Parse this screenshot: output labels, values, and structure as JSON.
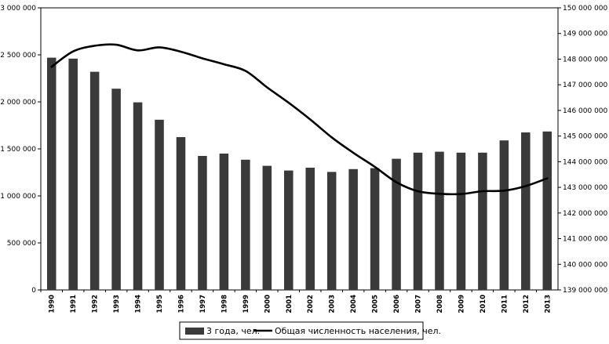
{
  "chart_data": {
    "type": "bar",
    "categories": [
      "1990",
      "1991",
      "1992",
      "1993",
      "1994",
      "1995",
      "1996",
      "1997",
      "1998",
      "1999",
      "2000",
      "2001",
      "2002",
      "2003",
      "2004",
      "2005",
      "2006",
      "2007",
      "2008",
      "2009",
      "2010",
      "2011",
      "2012",
      "2013"
    ],
    "series": [
      {
        "name": "3 года, чел.",
        "type": "bar",
        "axis": "left",
        "color": "#3a3a3a",
        "values": [
          2470000,
          2460000,
          2320000,
          2140000,
          1995000,
          1810000,
          1625000,
          1425000,
          1450000,
          1385000,
          1320000,
          1270000,
          1300000,
          1255000,
          1285000,
          1295000,
          1395000,
          1460000,
          1470000,
          1460000,
          1460000,
          1590000,
          1675000,
          1685000
        ]
      },
      {
        "name": "Общая численность населения, чел.",
        "type": "line",
        "axis": "right",
        "color": "#000000",
        "values": [
          147700000,
          148300000,
          148520000,
          148560000,
          148340000,
          148460000,
          148290000,
          148030000,
          147800000,
          147540000,
          146900000,
          146300000,
          145650000,
          144950000,
          144350000,
          143800000,
          143200000,
          142850000,
          142750000,
          142740000,
          142850000,
          142870000,
          143050000,
          143350000
        ]
      }
    ],
    "y_left": {
      "lim": [
        0,
        3000000
      ],
      "ticks": [
        "0",
        "500 000",
        "1 000 000",
        "1 500 000",
        "2 000 000",
        "2 500 000",
        "3 000 000"
      ]
    },
    "y_right": {
      "lim": [
        139000000,
        150000000
      ],
      "ticks": [
        "139 000 000",
        "140 000 000",
        "141 000 000",
        "142 000 000",
        "143 000 000",
        "144 000 000",
        "145 000 000",
        "146 000 000",
        "147 000 000",
        "148 000 000",
        "149 000 000",
        "150 000 000"
      ]
    },
    "grid": false,
    "legend_position": "bottom"
  }
}
